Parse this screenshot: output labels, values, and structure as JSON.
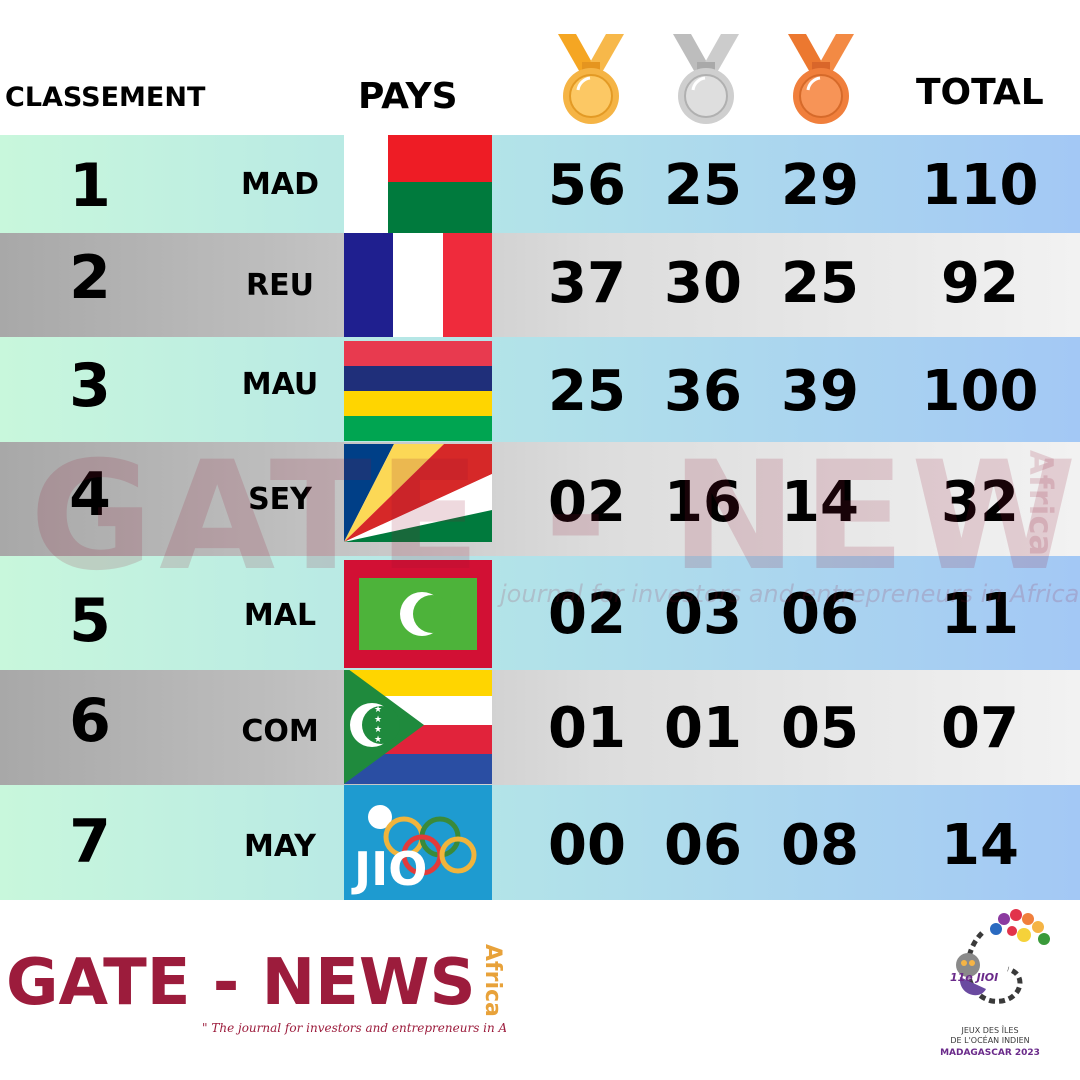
{
  "headers": {
    "rank": "CLASSEMENT",
    "country": "PAYS",
    "total": "TOTAL"
  },
  "medal_icons": [
    "gold-medal-icon",
    "silver-medal-icon",
    "bronze-medal-icon"
  ],
  "colors": {
    "gold": "#f5b445",
    "silver": "#cfcfcf",
    "bronze": "#f07f3c",
    "brand": "#9c1c3c"
  },
  "rows": [
    {
      "rank": "1",
      "code": "MAD",
      "gold": "56",
      "silver": "25",
      "bronze": "29",
      "total": "110"
    },
    {
      "rank": "2",
      "code": "REU",
      "gold": "37",
      "silver": "30",
      "bronze": "25",
      "total": "92"
    },
    {
      "rank": "3",
      "code": "MAU",
      "gold": "25",
      "silver": "36",
      "bronze": "39",
      "total": "100"
    },
    {
      "rank": "4",
      "code": "SEY",
      "gold": "02",
      "silver": "16",
      "bronze": "14",
      "total": "32"
    },
    {
      "rank": "5",
      "code": "MAL",
      "gold": "02",
      "silver": "03",
      "bronze": "06",
      "total": "11"
    },
    {
      "rank": "6",
      "code": "COM",
      "gold": "01",
      "silver": "01",
      "bronze": "05",
      "total": "07"
    },
    {
      "rank": "7",
      "code": "MAY",
      "gold": "00",
      "silver": "06",
      "bronze": "08",
      "total": "14"
    }
  ],
  "watermark": {
    "title": "GATE - NEWS",
    "region": "Africa",
    "tagline": "journal for investors and entrepreneurs in Africa \""
  },
  "footer": {
    "brand": "GATE - NEWS",
    "region": "Africa",
    "tagline": "\" The journal for investors and entrepreneurs in Africa \"",
    "jioi_mark": "11e JIOI",
    "jioi_line1": "JEUX DES ÎLES",
    "jioi_line2": "DE L'OCÉAN INDIEN",
    "jioi_line3": "MADAGASCAR 2023",
    "jio_flag_text": "JIO"
  }
}
